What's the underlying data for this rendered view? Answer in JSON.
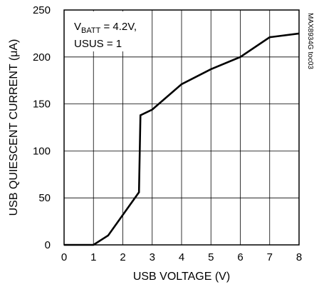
{
  "chart_data": {
    "type": "line",
    "xlabel": "USB VOLTAGE (V)",
    "ylabel": "USB QUIESCENT CURRENT (μA)",
    "xlim": [
      0,
      8
    ],
    "ylim": [
      0,
      250
    ],
    "x_ticks": [
      0,
      1,
      2,
      3,
      4,
      5,
      6,
      7,
      8
    ],
    "y_ticks": [
      0,
      50,
      100,
      150,
      200,
      250
    ],
    "grid": true,
    "annotation": {
      "line1_prefix": "V",
      "line1_subscript": "BATT",
      "line1_suffix": " = 4.2V,",
      "line2": "USUS = 1"
    },
    "figure_id": "MAX8934G toc03",
    "series": [
      {
        "x": [
          0,
          1,
          1.5,
          2.55,
          2.6,
          3.0,
          4.0,
          5.0,
          6.0,
          7.0,
          8.0
        ],
        "y": [
          0,
          0,
          10,
          56,
          138,
          144,
          171,
          187,
          200,
          221,
          225
        ]
      }
    ],
    "colors": {
      "line": "#000000",
      "grid": "#000000",
      "axis": "#000000",
      "background": "#ffffff"
    }
  }
}
